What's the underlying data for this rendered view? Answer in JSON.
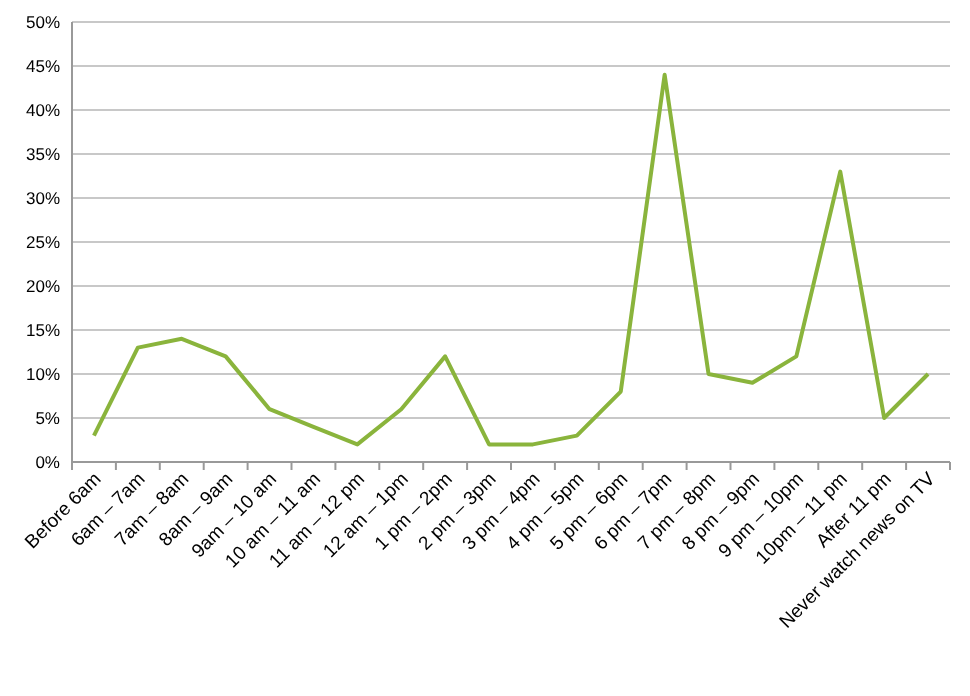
{
  "chart_data": {
    "type": "line",
    "categories": [
      "Before 6am",
      "6am – 7am",
      "7am – 8am",
      "8am – 9am",
      "9am – 10 am",
      "10 am – 11 am",
      "11 am – 12 pm",
      "12 am – 1pm",
      "1 pm – 2pm",
      "2 pm – 3pm",
      "3 pm – 4pm",
      "4 pm – 5pm",
      "5 pm – 6pm",
      "6 pm – 7pm",
      "7 pm – 8pm",
      "8 pm – 9pm",
      "9 pm – 10pm",
      "10pm – 11 pm",
      "After 11 pm",
      "Never watch news on TV"
    ],
    "series": [
      {
        "color": "#8ab43c",
        "values": [
          3,
          13,
          14,
          12,
          6,
          4,
          2,
          6,
          12,
          2,
          2,
          3,
          8,
          44,
          10,
          9,
          12,
          33,
          5,
          10
        ]
      }
    ],
    "ylim": [
      0,
      50
    ],
    "yticks": [
      {
        "value": 0,
        "label": "0%"
      },
      {
        "value": 5,
        "label": "5%"
      },
      {
        "value": 10,
        "label": "10%"
      },
      {
        "value": 15,
        "label": "15%"
      },
      {
        "value": 20,
        "label": "20%"
      },
      {
        "value": 25,
        "label": "25%"
      },
      {
        "value": 30,
        "label": "30%"
      },
      {
        "value": 35,
        "label": "35%"
      },
      {
        "value": 40,
        "label": "40%"
      },
      {
        "value": 45,
        "label": "45%"
      },
      {
        "value": 50,
        "label": "50%"
      }
    ],
    "grid": "y",
    "marker": "none",
    "line_style": "solid"
  }
}
